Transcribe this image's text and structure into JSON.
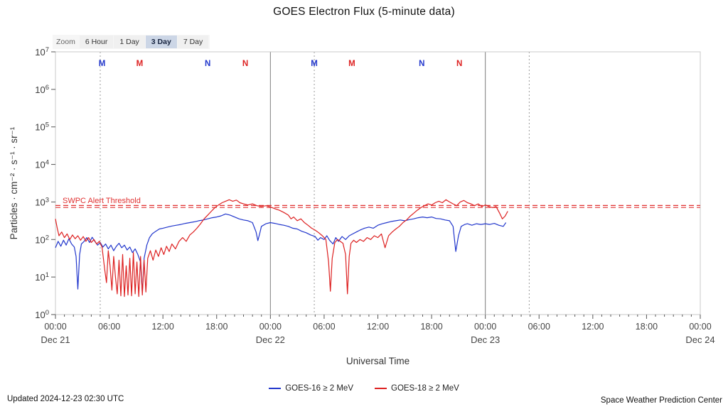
{
  "zoom": {
    "label": "Zoom",
    "options": [
      {
        "label": "6 Hour",
        "active": false
      },
      {
        "label": "1 Day",
        "active": false
      },
      {
        "label": "3 Day",
        "active": true
      },
      {
        "label": "7 Day",
        "active": false
      }
    ]
  },
  "chart_data": {
    "type": "line",
    "title": "GOES Electron Flux (5-minute data)",
    "xlabel": "Universal Time",
    "ylabel": "Particles · cm⁻² · s⁻¹ · sr⁻¹",
    "y_axis": {
      "scale": "log",
      "min_exp": 0,
      "max_exp": 7,
      "tick_base": "10"
    },
    "x_axis": {
      "start": "Dec 21 00:00 UTC",
      "end": "Dec 24 00:00 UTC",
      "hours": 72,
      "tick_interval_hours": 6,
      "time_tick_labels": [
        "00:00",
        "06:00",
        "12:00",
        "18:00"
      ],
      "date_labels": [
        "Dec 21",
        "Dec 22",
        "Dec 23",
        "Dec 24"
      ]
    },
    "threshold": {
      "label": "SWPC Alert Threshold",
      "value_exp": 2.88,
      "color": "#e03030"
    },
    "day_lines_hours": [
      24,
      48
    ],
    "dotted_lines_hours": [
      5.0,
      28.9,
      52.9
    ],
    "satellite_markers": [
      {
        "label": "M",
        "hour": 5.2,
        "satellite": "GOES-16",
        "color": "#2136cc"
      },
      {
        "label": "M",
        "hour": 9.4,
        "satellite": "GOES-18",
        "color": "#dd2020"
      },
      {
        "label": "N",
        "hour": 17.0,
        "satellite": "GOES-16",
        "color": "#2136cc"
      },
      {
        "label": "N",
        "hour": 21.2,
        "satellite": "GOES-18",
        "color": "#dd2020"
      },
      {
        "label": "M",
        "hour": 28.9,
        "satellite": "GOES-16",
        "color": "#2136cc"
      },
      {
        "label": "M",
        "hour": 33.1,
        "satellite": "GOES-18",
        "color": "#dd2020"
      },
      {
        "label": "N",
        "hour": 40.9,
        "satellite": "GOES-16",
        "color": "#2136cc"
      },
      {
        "label": "N",
        "hour": 45.1,
        "satellite": "GOES-18",
        "color": "#dd2020"
      }
    ],
    "series": [
      {
        "name": "GOES-16 ≥ 2 MeV",
        "color": "#2136cc",
        "x_unit": "hours since Dec 21 00:00 UTC",
        "y_unit": "log10 flux",
        "points": [
          [
            0,
            1.78
          ],
          [
            0.3,
            1.95
          ],
          [
            0.6,
            1.82
          ],
          [
            0.9,
            1.98
          ],
          [
            1.2,
            1.85
          ],
          [
            1.5,
            2.02
          ],
          [
            1.8,
            1.88
          ],
          [
            2.1,
            1.8
          ],
          [
            2.3,
            1.55
          ],
          [
            2.5,
            0.68
          ],
          [
            2.7,
            1.6
          ],
          [
            2.9,
            1.88
          ],
          [
            3.2,
            1.95
          ],
          [
            3.5,
            2.05
          ],
          [
            3.8,
            1.92
          ],
          [
            4.1,
            2.06
          ],
          [
            4.4,
            1.95
          ],
          [
            4.7,
            1.85
          ],
          [
            5,
            1.92
          ],
          [
            5.3,
            1.8
          ],
          [
            5.6,
            1.88
          ],
          [
            5.9,
            1.75
          ],
          [
            6.2,
            1.85
          ],
          [
            6.5,
            1.7
          ],
          [
            6.8,
            1.82
          ],
          [
            7.1,
            1.9
          ],
          [
            7.4,
            1.78
          ],
          [
            7.7,
            1.85
          ],
          [
            8,
            1.72
          ],
          [
            8.3,
            1.8
          ],
          [
            8.6,
            1.65
          ],
          [
            8.9,
            1.75
          ],
          [
            9.2,
            1.6
          ],
          [
            9.5,
            1.4
          ],
          [
            9.7,
            0.58
          ],
          [
            9.9,
            1.5
          ],
          [
            10.2,
            1.85
          ],
          [
            10.5,
            2.05
          ],
          [
            10.8,
            2.15
          ],
          [
            11.2,
            2.22
          ],
          [
            11.6,
            2.28
          ],
          [
            12,
            2.3
          ],
          [
            12.5,
            2.33
          ],
          [
            13,
            2.36
          ],
          [
            13.5,
            2.38
          ],
          [
            14,
            2.4
          ],
          [
            14.5,
            2.43
          ],
          [
            15,
            2.45
          ],
          [
            15.5,
            2.47
          ],
          [
            16,
            2.5
          ],
          [
            16.5,
            2.52
          ],
          [
            17,
            2.55
          ],
          [
            17.5,
            2.58
          ],
          [
            18,
            2.6
          ],
          [
            18.5,
            2.63
          ],
          [
            19,
            2.68
          ],
          [
            19.5,
            2.65
          ],
          [
            20,
            2.6
          ],
          [
            20.5,
            2.55
          ],
          [
            21,
            2.52
          ],
          [
            21.5,
            2.5
          ],
          [
            22,
            2.45
          ],
          [
            22.4,
            2.2
          ],
          [
            22.6,
            1.97
          ],
          [
            22.8,
            2.15
          ],
          [
            23,
            2.35
          ],
          [
            23.5,
            2.42
          ],
          [
            24,
            2.45
          ],
          [
            24.5,
            2.43
          ],
          [
            25,
            2.4
          ],
          [
            25.5,
            2.38
          ],
          [
            26,
            2.35
          ],
          [
            26.5,
            2.3
          ],
          [
            27,
            2.28
          ],
          [
            27.5,
            2.22
          ],
          [
            28,
            2.18
          ],
          [
            28.5,
            2.12
          ],
          [
            29,
            2.08
          ],
          [
            29.3,
            1.98
          ],
          [
            29.6,
            2.05
          ],
          [
            30,
            2
          ],
          [
            30.3,
            2.1
          ],
          [
            30.6,
            1.98
          ],
          [
            31,
            1.88
          ],
          [
            31.3,
            2.05
          ],
          [
            31.6,
            1.95
          ],
          [
            32,
            2.08
          ],
          [
            32.4,
            2
          ],
          [
            32.8,
            2.1
          ],
          [
            33.2,
            2.15
          ],
          [
            33.6,
            2.2
          ],
          [
            34,
            2.25
          ],
          [
            34.5,
            2.3
          ],
          [
            35,
            2.33
          ],
          [
            35.5,
            2.3
          ],
          [
            36,
            2.38
          ],
          [
            36.5,
            2.42
          ],
          [
            37,
            2.45
          ],
          [
            37.5,
            2.48
          ],
          [
            38,
            2.5
          ],
          [
            38.5,
            2.52
          ],
          [
            39,
            2.5
          ],
          [
            39.5,
            2.53
          ],
          [
            40,
            2.55
          ],
          [
            40.5,
            2.58
          ],
          [
            41,
            2.6
          ],
          [
            41.5,
            2.58
          ],
          [
            42,
            2.6
          ],
          [
            42.5,
            2.56
          ],
          [
            43,
            2.55
          ],
          [
            43.5,
            2.52
          ],
          [
            44,
            2.5
          ],
          [
            44.4,
            2.35
          ],
          [
            44.7,
            1.68
          ],
          [
            45,
            2.1
          ],
          [
            45.3,
            2.35
          ],
          [
            45.7,
            2.4
          ],
          [
            46,
            2.42
          ],
          [
            46.5,
            2.38
          ],
          [
            47,
            2.42
          ],
          [
            47.5,
            2.4
          ],
          [
            48,
            2.42
          ],
          [
            48.5,
            2.4
          ],
          [
            49,
            2.43
          ],
          [
            49.5,
            2.38
          ],
          [
            50,
            2.35
          ],
          [
            50.3,
            2.45
          ]
        ]
      },
      {
        "name": "GOES-18 ≥ 2 MeV",
        "color": "#dd2020",
        "x_unit": "hours since Dec 21 00:00 UTC",
        "y_unit": "log10 flux",
        "points": [
          [
            0,
            2.55
          ],
          [
            0.2,
            2.3
          ],
          [
            0.4,
            2.1
          ],
          [
            0.7,
            2.2
          ],
          [
            1,
            2.05
          ],
          [
            1.3,
            2.15
          ],
          [
            1.6,
            2
          ],
          [
            1.9,
            2.12
          ],
          [
            2.2,
            2.02
          ],
          [
            2.5,
            2.1
          ],
          [
            2.8,
            1.98
          ],
          [
            3.1,
            2.08
          ],
          [
            3.4,
            1.95
          ],
          [
            3.7,
            2.05
          ],
          [
            4,
            1.92
          ],
          [
            4.3,
            2
          ],
          [
            4.6,
            1.88
          ],
          [
            4.9,
            1.95
          ],
          [
            5.2,
            1.8
          ],
          [
            5.5,
            1.2
          ],
          [
            5.7,
            0.85
          ],
          [
            5.9,
            1.7
          ],
          [
            6.1,
            1.3
          ],
          [
            6.3,
            0.65
          ],
          [
            6.5,
            1.55
          ],
          [
            6.7,
            1
          ],
          [
            6.9,
            0.55
          ],
          [
            7.1,
            1.45
          ],
          [
            7.3,
            0.5
          ],
          [
            7.5,
            1.6
          ],
          [
            7.7,
            0.48
          ],
          [
            7.9,
            1.3
          ],
          [
            8.1,
            0.52
          ],
          [
            8.3,
            1.5
          ],
          [
            8.5,
            0.5
          ],
          [
            8.7,
            1.65
          ],
          [
            8.9,
            0.55
          ],
          [
            9.1,
            1.4
          ],
          [
            9.3,
            0.48
          ],
          [
            9.5,
            1.55
          ],
          [
            9.7,
            0.52
          ],
          [
            9.9,
            1.45
          ],
          [
            10.1,
            0.6
          ],
          [
            10.3,
            1.5
          ],
          [
            10.6,
            1.7
          ],
          [
            10.9,
            1.45
          ],
          [
            11.2,
            1.72
          ],
          [
            11.5,
            1.55
          ],
          [
            11.8,
            1.78
          ],
          [
            12.1,
            1.6
          ],
          [
            12.4,
            1.82
          ],
          [
            12.7,
            1.68
          ],
          [
            13,
            1.88
          ],
          [
            13.4,
            1.75
          ],
          [
            13.8,
            1.95
          ],
          [
            14.2,
            2.05
          ],
          [
            14.6,
            1.95
          ],
          [
            15,
            2.12
          ],
          [
            15.4,
            2.2
          ],
          [
            15.8,
            2.3
          ],
          [
            16.2,
            2.42
          ],
          [
            16.6,
            2.55
          ],
          [
            17,
            2.65
          ],
          [
            17.4,
            2.75
          ],
          [
            17.8,
            2.85
          ],
          [
            18.2,
            2.92
          ],
          [
            18.6,
            2.98
          ],
          [
            19,
            3.02
          ],
          [
            19.4,
            3.06
          ],
          [
            19.8,
            3.02
          ],
          [
            20.2,
            3.05
          ],
          [
            20.6,
            2.98
          ],
          [
            21,
            2.95
          ],
          [
            21.5,
            2.92
          ],
          [
            22,
            2.95
          ],
          [
            22.5,
            2.9
          ],
          [
            23,
            2.88
          ],
          [
            23.5,
            2.9
          ],
          [
            24,
            2.87
          ],
          [
            24.5,
            2.82
          ],
          [
            25,
            2.78
          ],
          [
            25.5,
            2.72
          ],
          [
            26,
            2.65
          ],
          [
            26.3,
            2.55
          ],
          [
            26.6,
            2.6
          ],
          [
            27,
            2.5
          ],
          [
            27.4,
            2.55
          ],
          [
            27.8,
            2.45
          ],
          [
            28.2,
            2.38
          ],
          [
            28.6,
            2.3
          ],
          [
            29,
            2.25
          ],
          [
            29.4,
            2.18
          ],
          [
            29.8,
            2.1
          ],
          [
            30.2,
            2
          ],
          [
            30.5,
            1.4
          ],
          [
            30.7,
            0.62
          ],
          [
            30.9,
            1.5
          ],
          [
            31.2,
            1.92
          ],
          [
            31.5,
            2
          ],
          [
            31.8,
            1.95
          ],
          [
            32.1,
            1.9
          ],
          [
            32.4,
            1.6
          ],
          [
            32.6,
            0.55
          ],
          [
            32.8,
            1.55
          ],
          [
            33,
            1.9
          ],
          [
            33.3,
            1.98
          ],
          [
            33.6,
            1.92
          ],
          [
            34,
            2
          ],
          [
            34.4,
            1.95
          ],
          [
            34.8,
            2.05
          ],
          [
            35.2,
            2
          ],
          [
            35.6,
            2.1
          ],
          [
            36,
            2.05
          ],
          [
            36.4,
            2.15
          ],
          [
            36.8,
            1.78
          ],
          [
            37.2,
            2.1
          ],
          [
            37.6,
            2.2
          ],
          [
            38,
            2.28
          ],
          [
            38.4,
            2.35
          ],
          [
            38.8,
            2.45
          ],
          [
            39.2,
            2.52
          ],
          [
            39.6,
            2.62
          ],
          [
            40,
            2.7
          ],
          [
            40.4,
            2.78
          ],
          [
            40.8,
            2.85
          ],
          [
            41.2,
            2.9
          ],
          [
            41.6,
            2.95
          ],
          [
            42,
            2.92
          ],
          [
            42.4,
            2.98
          ],
          [
            42.8,
            3.02
          ],
          [
            43.2,
            2.98
          ],
          [
            43.6,
            3.06
          ],
          [
            44,
            3
          ],
          [
            44.4,
            2.95
          ],
          [
            44.8,
            2.9
          ],
          [
            45.2,
            3
          ],
          [
            45.6,
            3.04
          ],
          [
            46,
            2.98
          ],
          [
            46.4,
            2.95
          ],
          [
            46.8,
            2.9
          ],
          [
            47.2,
            2.95
          ],
          [
            47.6,
            2.88
          ],
          [
            48,
            2.92
          ],
          [
            48.4,
            2.88
          ],
          [
            48.8,
            2.85
          ],
          [
            49.2,
            2.88
          ],
          [
            49.6,
            2.7
          ],
          [
            49.9,
            2.55
          ],
          [
            50.2,
            2.62
          ],
          [
            50.5,
            2.75
          ]
        ]
      }
    ]
  },
  "legend": [
    {
      "label": "GOES-16 ≥ 2 MeV",
      "color": "#2136cc"
    },
    {
      "label": "GOES-18 ≥ 2 MeV",
      "color": "#dd2020"
    }
  ],
  "footer": {
    "updated": "Updated 2024-12-23 02:30 UTC",
    "source": "Space Weather Prediction Center"
  }
}
